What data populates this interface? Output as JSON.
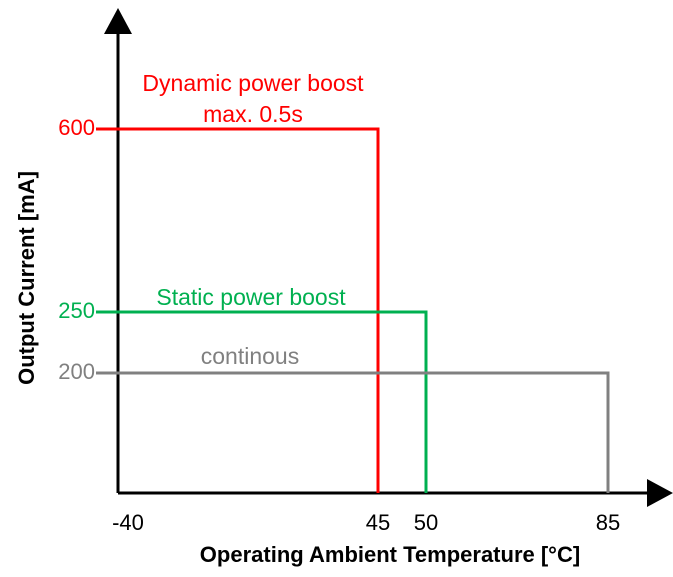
{
  "chart_data": {
    "type": "step",
    "xlabel": "Operating Ambient Temperature [°C]",
    "ylabel": "Output Current [mA]",
    "xticks": [
      -40,
      45,
      50,
      85
    ],
    "yticks": [
      200,
      250,
      600
    ],
    "series": [
      {
        "name": "Dynamic power boost max. 0.5s",
        "color": "#ff0000",
        "x": [
          -40,
          45,
          45
        ],
        "values": [
          600,
          600,
          0
        ]
      },
      {
        "name": "Static power boost",
        "color": "#00b050",
        "x": [
          -40,
          50,
          50
        ],
        "values": [
          250,
          250,
          0
        ]
      },
      {
        "name": "continous",
        "color": "#808080",
        "x": [
          -40,
          85,
          85
        ],
        "values": [
          200,
          200,
          0
        ]
      }
    ]
  }
}
